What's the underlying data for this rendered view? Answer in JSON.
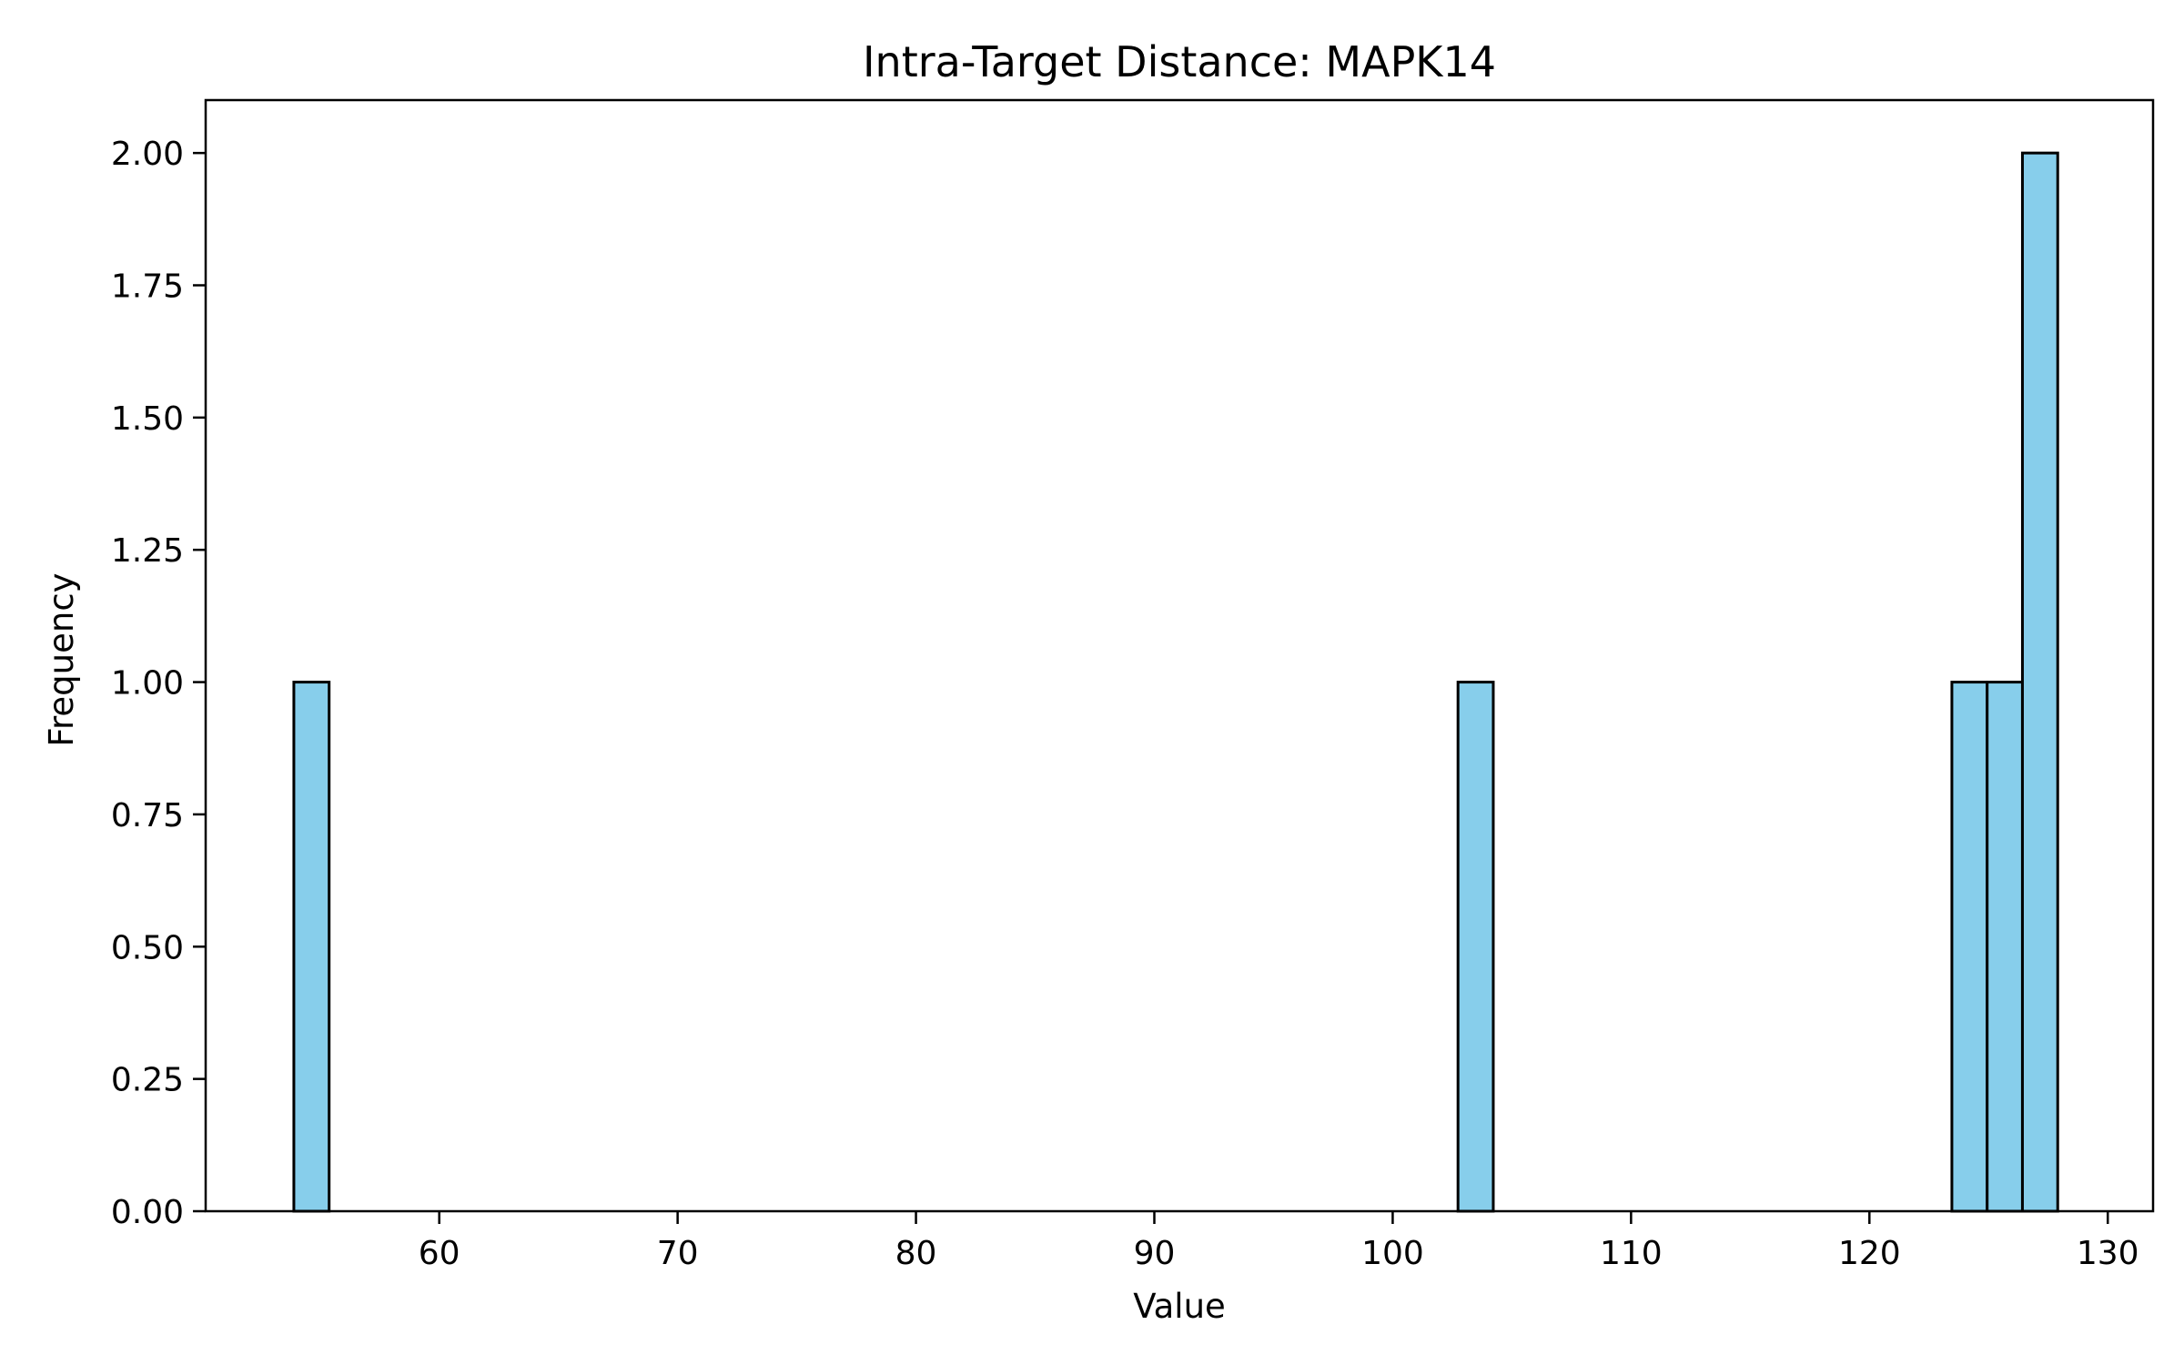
{
  "chart_data": {
    "type": "bar",
    "subtype": "histogram",
    "title": "Intra-Target Distance: MAPK14",
    "xlabel": "Value",
    "ylabel": "Frequency",
    "xlim": [
      50.2,
      131.9
    ],
    "ylim": [
      0,
      2.1
    ],
    "bin_width": 1.48,
    "bins": [
      {
        "start": 53.9,
        "end": 55.38,
        "count": 1
      },
      {
        "start": 102.74,
        "end": 104.22,
        "count": 1
      },
      {
        "start": 123.46,
        "end": 124.94,
        "count": 1
      },
      {
        "start": 124.94,
        "end": 126.42,
        "count": 1
      },
      {
        "start": 126.42,
        "end": 127.9,
        "count": 2
      }
    ],
    "x_ticks": [
      60,
      70,
      80,
      90,
      100,
      110,
      120,
      130
    ],
    "x_tick_labels": [
      "60",
      "70",
      "80",
      "90",
      "100",
      "110",
      "120",
      "130"
    ],
    "y_ticks": [
      0,
      0.25,
      0.5,
      0.75,
      1.0,
      1.25,
      1.5,
      1.75,
      2.0
    ],
    "y_tick_labels": [
      "0.00",
      "0.25",
      "0.50",
      "0.75",
      "1.00",
      "1.25",
      "1.50",
      "1.75",
      "2.00"
    ],
    "bar_color": "#87ceeb",
    "edge_color": "#000000",
    "grid": false,
    "legend": "none"
  }
}
